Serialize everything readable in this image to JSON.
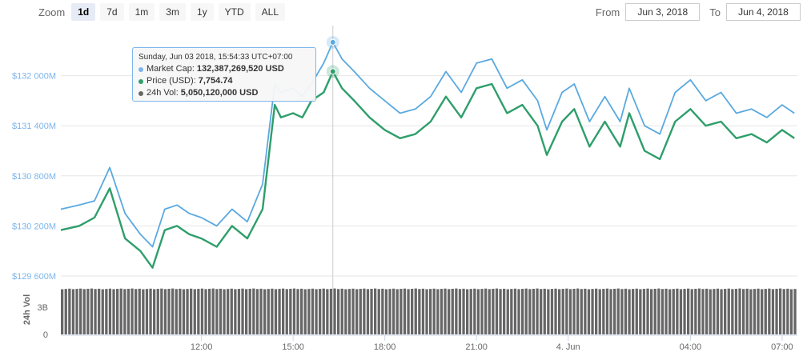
{
  "zoom": {
    "label": "Zoom",
    "buttons": [
      "1d",
      "7d",
      "1m",
      "3m",
      "1y",
      "YTD",
      "ALL"
    ],
    "active": "1d"
  },
  "range": {
    "from_label": "From",
    "from_value": "Jun 3, 2018",
    "to_label": "To",
    "to_value": "Jun 4, 2018"
  },
  "colors": {
    "market_cap": "#7cb5ec",
    "market_cap_line": "#5aa9e0",
    "price": "#2e9e6b",
    "volume": "#666666",
    "grid": "#e6e6e6",
    "axis_label": "#7cb5ec"
  },
  "tooltip": {
    "date": "Sunday, Jun 03 2018, 15:54:33 UTC+07:00",
    "rows": [
      {
        "name": "Market Cap:",
        "value": "132,387,269,520 USD",
        "color": "#7cb5ec"
      },
      {
        "name": "Price (USD):",
        "value": "7,754.74",
        "color": "#2e9e6b"
      },
      {
        "name": "24h Vol:",
        "value": "5,050,120,000 USD",
        "color": "#666666"
      }
    ]
  },
  "chart_data": {
    "type": "line",
    "ylabel": "",
    "volume_axis_label": "24h Vol",
    "y_ticks": [
      "$132 000M",
      "$131 400M",
      "$130 800M",
      "$130 200M",
      "$129 600M"
    ],
    "y_tick_values": [
      132000,
      131400,
      130800,
      130200,
      129600
    ],
    "ylim": [
      129600,
      132600
    ],
    "volume_ticks": [
      "3B",
      "0"
    ],
    "volume_tick_values": [
      3,
      0
    ],
    "volume_ylim": [
      0,
      5.5
    ],
    "x_ticks": [
      "12:00",
      "15:00",
      "18:00",
      "21:00",
      "4. Jun",
      "04:00",
      "07:00"
    ],
    "x_tick_hours": [
      12,
      15,
      18,
      21,
      24,
      28,
      31
    ],
    "x_range_hours": [
      7.4,
      31.5
    ],
    "highlight_hour": 16.3,
    "grid": true,
    "legend": "none",
    "series": [
      {
        "name": "Market Cap",
        "unit": "USD millions",
        "x": [
          7.4,
          8.0,
          8.5,
          9.0,
          9.5,
          10.0,
          10.4,
          10.8,
          11.2,
          11.6,
          12.0,
          12.5,
          13.0,
          13.5,
          14.0,
          14.4,
          14.6,
          15.0,
          15.3,
          15.6,
          16.0,
          16.3,
          16.6,
          17.0,
          17.5,
          18.0,
          18.5,
          19.0,
          19.5,
          20.0,
          20.5,
          21.0,
          21.5,
          22.0,
          22.5,
          23.0,
          23.3,
          23.8,
          24.2,
          24.7,
          25.2,
          25.7,
          26.0,
          26.5,
          27.0,
          27.5,
          28.0,
          28.5,
          29.0,
          29.5,
          30.0,
          30.5,
          31.0,
          31.4
        ],
        "values": [
          130400,
          130450,
          130500,
          130900,
          130350,
          130100,
          129950,
          130400,
          130450,
          130350,
          130300,
          130200,
          130400,
          130250,
          130700,
          131900,
          131800,
          131850,
          131750,
          131900,
          132150,
          132400,
          132200,
          132050,
          131850,
          131700,
          131550,
          131600,
          131750,
          132050,
          131800,
          132150,
          132200,
          131850,
          131950,
          131700,
          131350,
          131800,
          131900,
          131450,
          131750,
          131450,
          131850,
          131400,
          131300,
          131800,
          131950,
          131700,
          131800,
          131550,
          131600,
          131500,
          131650,
          131550
        ]
      },
      {
        "name": "Price (USD)",
        "unit": "USD (scaled to market-cap axis)",
        "x": [
          7.4,
          8.0,
          8.5,
          9.0,
          9.5,
          10.0,
          10.4,
          10.8,
          11.2,
          11.6,
          12.0,
          12.5,
          13.0,
          13.5,
          14.0,
          14.4,
          14.6,
          15.0,
          15.3,
          15.6,
          16.0,
          16.3,
          16.6,
          17.0,
          17.5,
          18.0,
          18.5,
          19.0,
          19.5,
          20.0,
          20.5,
          21.0,
          21.5,
          22.0,
          22.5,
          23.0,
          23.3,
          23.8,
          24.2,
          24.7,
          25.2,
          25.7,
          26.0,
          26.5,
          27.0,
          27.5,
          28.0,
          28.5,
          29.0,
          29.5,
          30.0,
          30.5,
          31.0,
          31.4
        ],
        "values": [
          130150,
          130200,
          130300,
          130650,
          130050,
          129900,
          129700,
          130150,
          130200,
          130100,
          130050,
          129950,
          130200,
          130050,
          130400,
          131650,
          131500,
          131550,
          131500,
          131700,
          131800,
          132050,
          131850,
          131700,
          131500,
          131350,
          131250,
          131300,
          131450,
          131750,
          131500,
          131850,
          131900,
          131550,
          131650,
          131400,
          131050,
          131450,
          131600,
          131150,
          131450,
          131150,
          131550,
          131100,
          131000,
          131450,
          131600,
          131400,
          131450,
          131250,
          131300,
          131200,
          131350,
          131250
        ]
      }
    ],
    "volume": {
      "name": "24h Vol",
      "unit": "B USD",
      "x_range_hours": [
        7.4,
        31.5
      ],
      "value": 5.05
    }
  }
}
